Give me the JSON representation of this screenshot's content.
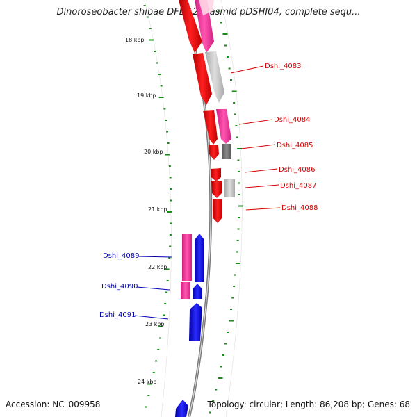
{
  "title": "Dinoroseobacter shibae DFL 12 plasmid pDSHI04, complete sequ...",
  "accession": "Accession: NC_009958",
  "summary": "Topology: circular; Length: 86,208 bp; Genes: 68",
  "ruler": [
    {
      "label": "18 kbp"
    },
    {
      "label": "19 kbp"
    },
    {
      "label": "20 kbp"
    },
    {
      "label": "21 kbp"
    },
    {
      "label": "22 kbp"
    },
    {
      "label": "23 kbp"
    },
    {
      "label": "24 kbp"
    }
  ],
  "genes_right": [
    {
      "name": "Dshi_4083"
    },
    {
      "name": "Dshi_4084"
    },
    {
      "name": "Dshi_4085"
    },
    {
      "name": "Dshi_4086"
    },
    {
      "name": "Dshi_4087"
    },
    {
      "name": "Dshi_4088"
    }
  ],
  "genes_left": [
    {
      "name": "Dshi_4089"
    },
    {
      "name": "Dshi_4090"
    },
    {
      "name": "Dshi_4091"
    }
  ],
  "colors": {
    "forward_gene": "#ff0000",
    "reverse_gene": "#0000ee",
    "cds_pink": "#ff3fa0",
    "cds_gray": "#c0c0c0",
    "cds_dark_gray": "#707070",
    "ruler_tick": "#1a8a1a",
    "backbone": "#888888"
  }
}
